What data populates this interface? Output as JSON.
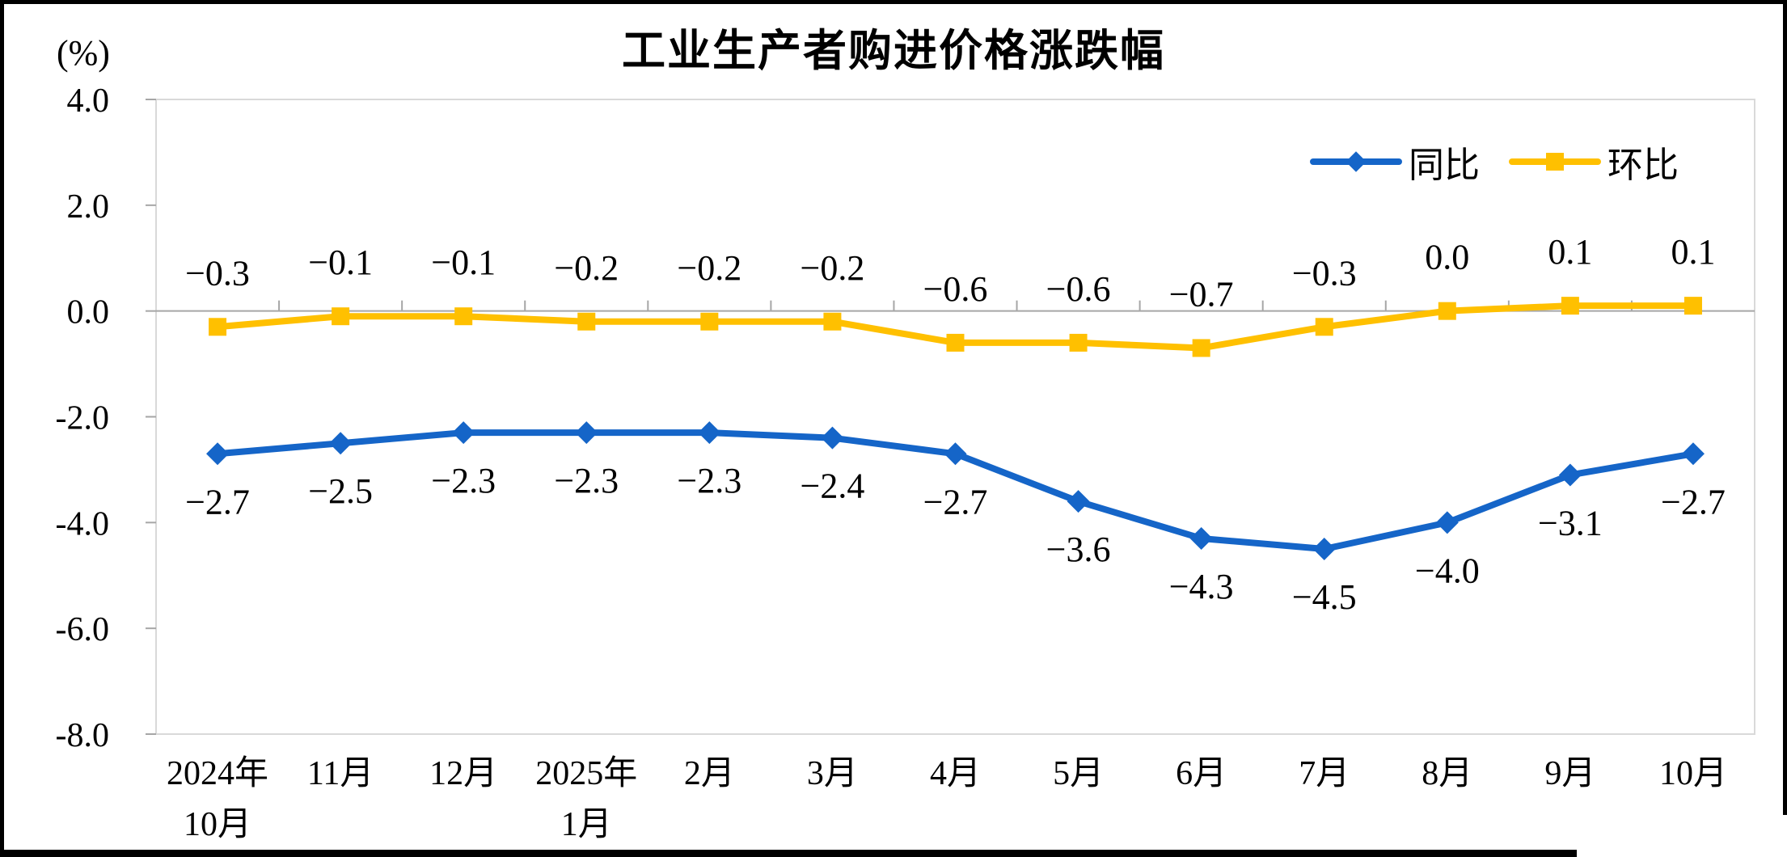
{
  "chart_data": {
    "type": "line",
    "title": "工业生产者购进价格涨跌幅",
    "unit_label": "(%)",
    "categories": [
      "2024年\n10月",
      "11月",
      "12月",
      "2025年\n1月",
      "2月",
      "3月",
      "4月",
      "5月",
      "6月",
      "7月",
      "8月",
      "9月",
      "10月"
    ],
    "series": [
      {
        "name": "同比",
        "color": "#1565C8",
        "marker": "diamond",
        "label_position": "below",
        "values": [
          -2.7,
          -2.5,
          -2.3,
          -2.3,
          -2.3,
          -2.4,
          -2.7,
          -3.6,
          -4.3,
          -4.5,
          -4.0,
          -3.1,
          -2.7
        ]
      },
      {
        "name": "环比",
        "color": "#FFC000",
        "marker": "square",
        "label_position": "above",
        "values": [
          -0.3,
          -0.1,
          -0.1,
          -0.2,
          -0.2,
          -0.2,
          -0.6,
          -0.6,
          -0.7,
          -0.3,
          0.0,
          0.1,
          0.1
        ]
      }
    ],
    "ylim": [
      -8.0,
      4.0
    ],
    "ytick_step": 2.0,
    "ytick_labels": [
      "4.0",
      "2.0",
      "0.0",
      "-2.0",
      "-4.0",
      "-6.0",
      "-8.0"
    ],
    "grid": "off",
    "legend_position": "top-right-inside",
    "axis_color": "#A6A6A6",
    "border_color": "#D9D9D9"
  }
}
